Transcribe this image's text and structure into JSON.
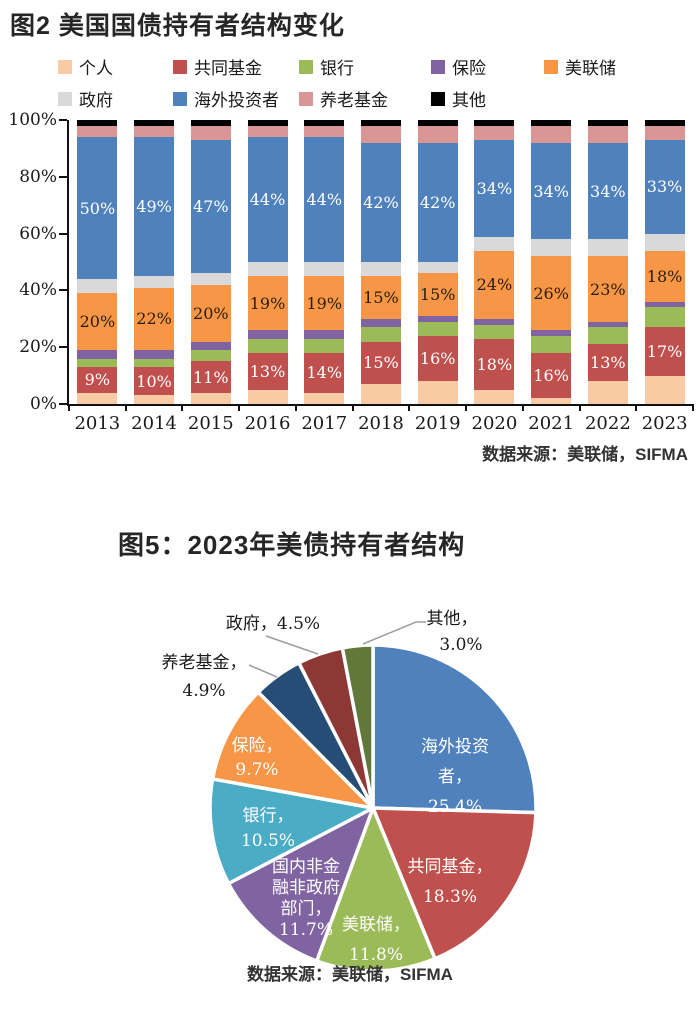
{
  "fig2": {
    "title": "图2 美国国债持有者结构变化",
    "source": "数据来源：美联储，SIFMA"
  },
  "fig5": {
    "title": "图5：2023年美债持有者结构",
    "source": "数据来源：美联储，SIFMA"
  },
  "chart_data": [
    {
      "id": "fig2-stacked-bar",
      "type": "bar",
      "stacked": true,
      "title": "图2 美国国债持有者结构变化",
      "source": "数据来源：美联储，SIFMA",
      "categories": [
        "2013",
        "2014",
        "2015",
        "2016",
        "2017",
        "2018",
        "2019",
        "2020",
        "2021",
        "2022",
        "2023"
      ],
      "y_ticks": [
        "0%",
        "20%",
        "40%",
        "60%",
        "80%",
        "100%"
      ],
      "ylim": [
        0,
        100
      ],
      "grid": false,
      "legend_position": "top",
      "legend_rows": [
        [
          "个人",
          "共同基金",
          "银行",
          "保险",
          "美联储"
        ],
        [
          "政府",
          "海外投资者",
          "养老基金",
          "其他"
        ]
      ],
      "series": [
        {
          "name": "个人",
          "color": "#F8CBA4",
          "values": [
            4,
            3,
            4,
            5,
            4,
            7,
            8,
            5,
            2,
            8,
            10
          ],
          "data_labels": false
        },
        {
          "name": "共同基金",
          "color": "#C0504D",
          "values": [
            9,
            10,
            11,
            13,
            14,
            15,
            16,
            18,
            16,
            13,
            17
          ],
          "data_labels": true,
          "label_color": "#ffffff"
        },
        {
          "name": "银行",
          "color": "#9BBB59",
          "values": [
            3,
            3,
            4,
            5,
            5,
            5,
            5,
            5,
            6,
            6,
            7
          ],
          "data_labels": false
        },
        {
          "name": "保险",
          "color": "#8064A2",
          "values": [
            3,
            3,
            3,
            3,
            3,
            3,
            2,
            2,
            2,
            2,
            2
          ],
          "data_labels": false
        },
        {
          "name": "美联储",
          "color": "#F79646",
          "values": [
            20,
            22,
            20,
            19,
            19,
            15,
            15,
            24,
            26,
            23,
            18
          ],
          "data_labels": true,
          "label_color": "#2a1d0a"
        },
        {
          "name": "政府",
          "color": "#D9D9D9",
          "values": [
            5,
            4,
            4,
            5,
            5,
            5,
            4,
            5,
            6,
            6,
            6
          ],
          "data_labels": false
        },
        {
          "name": "海外投资者",
          "color": "#4F81BD",
          "values": [
            50,
            49,
            47,
            44,
            44,
            42,
            42,
            34,
            34,
            34,
            33
          ],
          "data_labels": true,
          "label_color": "#ffffff"
        },
        {
          "name": "养老基金",
          "color": "#D99694",
          "values": [
            4,
            4,
            5,
            4,
            4,
            6,
            6,
            5,
            6,
            6,
            5
          ],
          "data_labels": false
        },
        {
          "name": "其他",
          "color": "#000000",
          "values": [
            2,
            2,
            2,
            2,
            2,
            2,
            2,
            2,
            2,
            2,
            2
          ],
          "data_labels": false
        }
      ]
    },
    {
      "id": "fig5-pie",
      "type": "pie",
      "title": "图5：2023年美债持有者结构",
      "source": "数据来源：美联储，SIFMA",
      "start_angle_deg": 0,
      "direction": "clockwise",
      "slices": [
        {
          "name": "海外投资者",
          "value": 25.4,
          "color": "#4F81BD",
          "label_lines": [
            "海外投资",
            "者，",
            "25.4%"
          ],
          "label_pos": "inside"
        },
        {
          "name": "共同基金",
          "value": 18.3,
          "color": "#C0504D",
          "label_lines": [
            "共同基金，",
            "18.3%"
          ],
          "label_pos": "inside"
        },
        {
          "name": "美联储",
          "value": 11.8,
          "color": "#9BBB59",
          "label_lines": [
            "美联储，",
            "11.8%"
          ],
          "label_pos": "inside"
        },
        {
          "name": "国内非金融非政府部门",
          "value": 11.7,
          "color": "#8064A2",
          "label_lines": [
            "国内非金",
            "融非政府",
            "部门，",
            "11.7%"
          ],
          "label_pos": "inside"
        },
        {
          "name": "银行",
          "value": 10.5,
          "color": "#4BACC6",
          "label_lines": [
            "银行，",
            "10.5%"
          ],
          "label_pos": "inside"
        },
        {
          "name": "保险",
          "value": 9.7,
          "color": "#F79646",
          "label_lines": [
            "保险，",
            "9.7%"
          ],
          "label_pos": "inside"
        },
        {
          "name": "养老基金",
          "value": 4.9,
          "color": "#264D76",
          "label_lines": [
            "养老基金，",
            "4.9%"
          ],
          "label_pos": "outside"
        },
        {
          "name": "政府",
          "value": 4.5,
          "color": "#8E3836",
          "label_lines": [
            "政府，4.5%"
          ],
          "label_pos": "outside"
        },
        {
          "name": "其他",
          "value": 3.0,
          "color": "#60793B",
          "label_lines": [
            "其他，",
            "3.0%"
          ],
          "label_pos": "outside"
        }
      ]
    }
  ]
}
